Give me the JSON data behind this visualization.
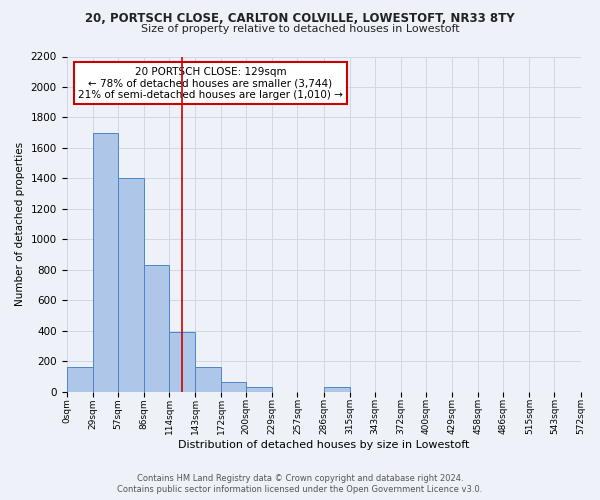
{
  "title_line1": "20, PORTSCH CLOSE, CARLTON COLVILLE, LOWESTOFT, NR33 8TY",
  "title_line2": "Size of property relative to detached houses in Lowestoft",
  "xlabel": "Distribution of detached houses by size in Lowestoft",
  "ylabel": "Number of detached properties",
  "bar_edges": [
    0,
    29,
    57,
    86,
    114,
    143,
    172,
    200,
    229,
    257,
    286,
    315,
    343,
    372,
    400,
    429,
    458,
    486,
    515,
    543,
    572
  ],
  "bar_heights": [
    160,
    1700,
    1400,
    830,
    390,
    165,
    65,
    30,
    0,
    0,
    30,
    0,
    0,
    0,
    0,
    0,
    0,
    0,
    0,
    0
  ],
  "bar_color": "#aec6e8",
  "bar_edge_color": "#4a86c8",
  "property_size": 129,
  "vline_color": "#cc0000",
  "ylim": [
    0,
    2200
  ],
  "yticks": [
    0,
    200,
    400,
    600,
    800,
    1000,
    1200,
    1400,
    1600,
    1800,
    2000,
    2200
  ],
  "xtick_labels": [
    "0sqm",
    "29sqm",
    "57sqm",
    "86sqm",
    "114sqm",
    "143sqm",
    "172sqm",
    "200sqm",
    "229sqm",
    "257sqm",
    "286sqm",
    "315sqm",
    "343sqm",
    "372sqm",
    "400sqm",
    "429sqm",
    "458sqm",
    "486sqm",
    "515sqm",
    "543sqm",
    "572sqm"
  ],
  "annotation_box_text_line1": "20 PORTSCH CLOSE: 129sqm",
  "annotation_box_text_line2": "← 78% of detached houses are smaller (3,744)",
  "annotation_box_text_line3": "21% of semi-detached houses are larger (1,010) →",
  "annotation_box_color": "#ffffff",
  "annotation_box_edge_color": "#cc0000",
  "footer_line1": "Contains HM Land Registry data © Crown copyright and database right 2024.",
  "footer_line2": "Contains public sector information licensed under the Open Government Licence v3.0.",
  "grid_color": "#d0d8e8",
  "bg_color": "#eef2f8"
}
